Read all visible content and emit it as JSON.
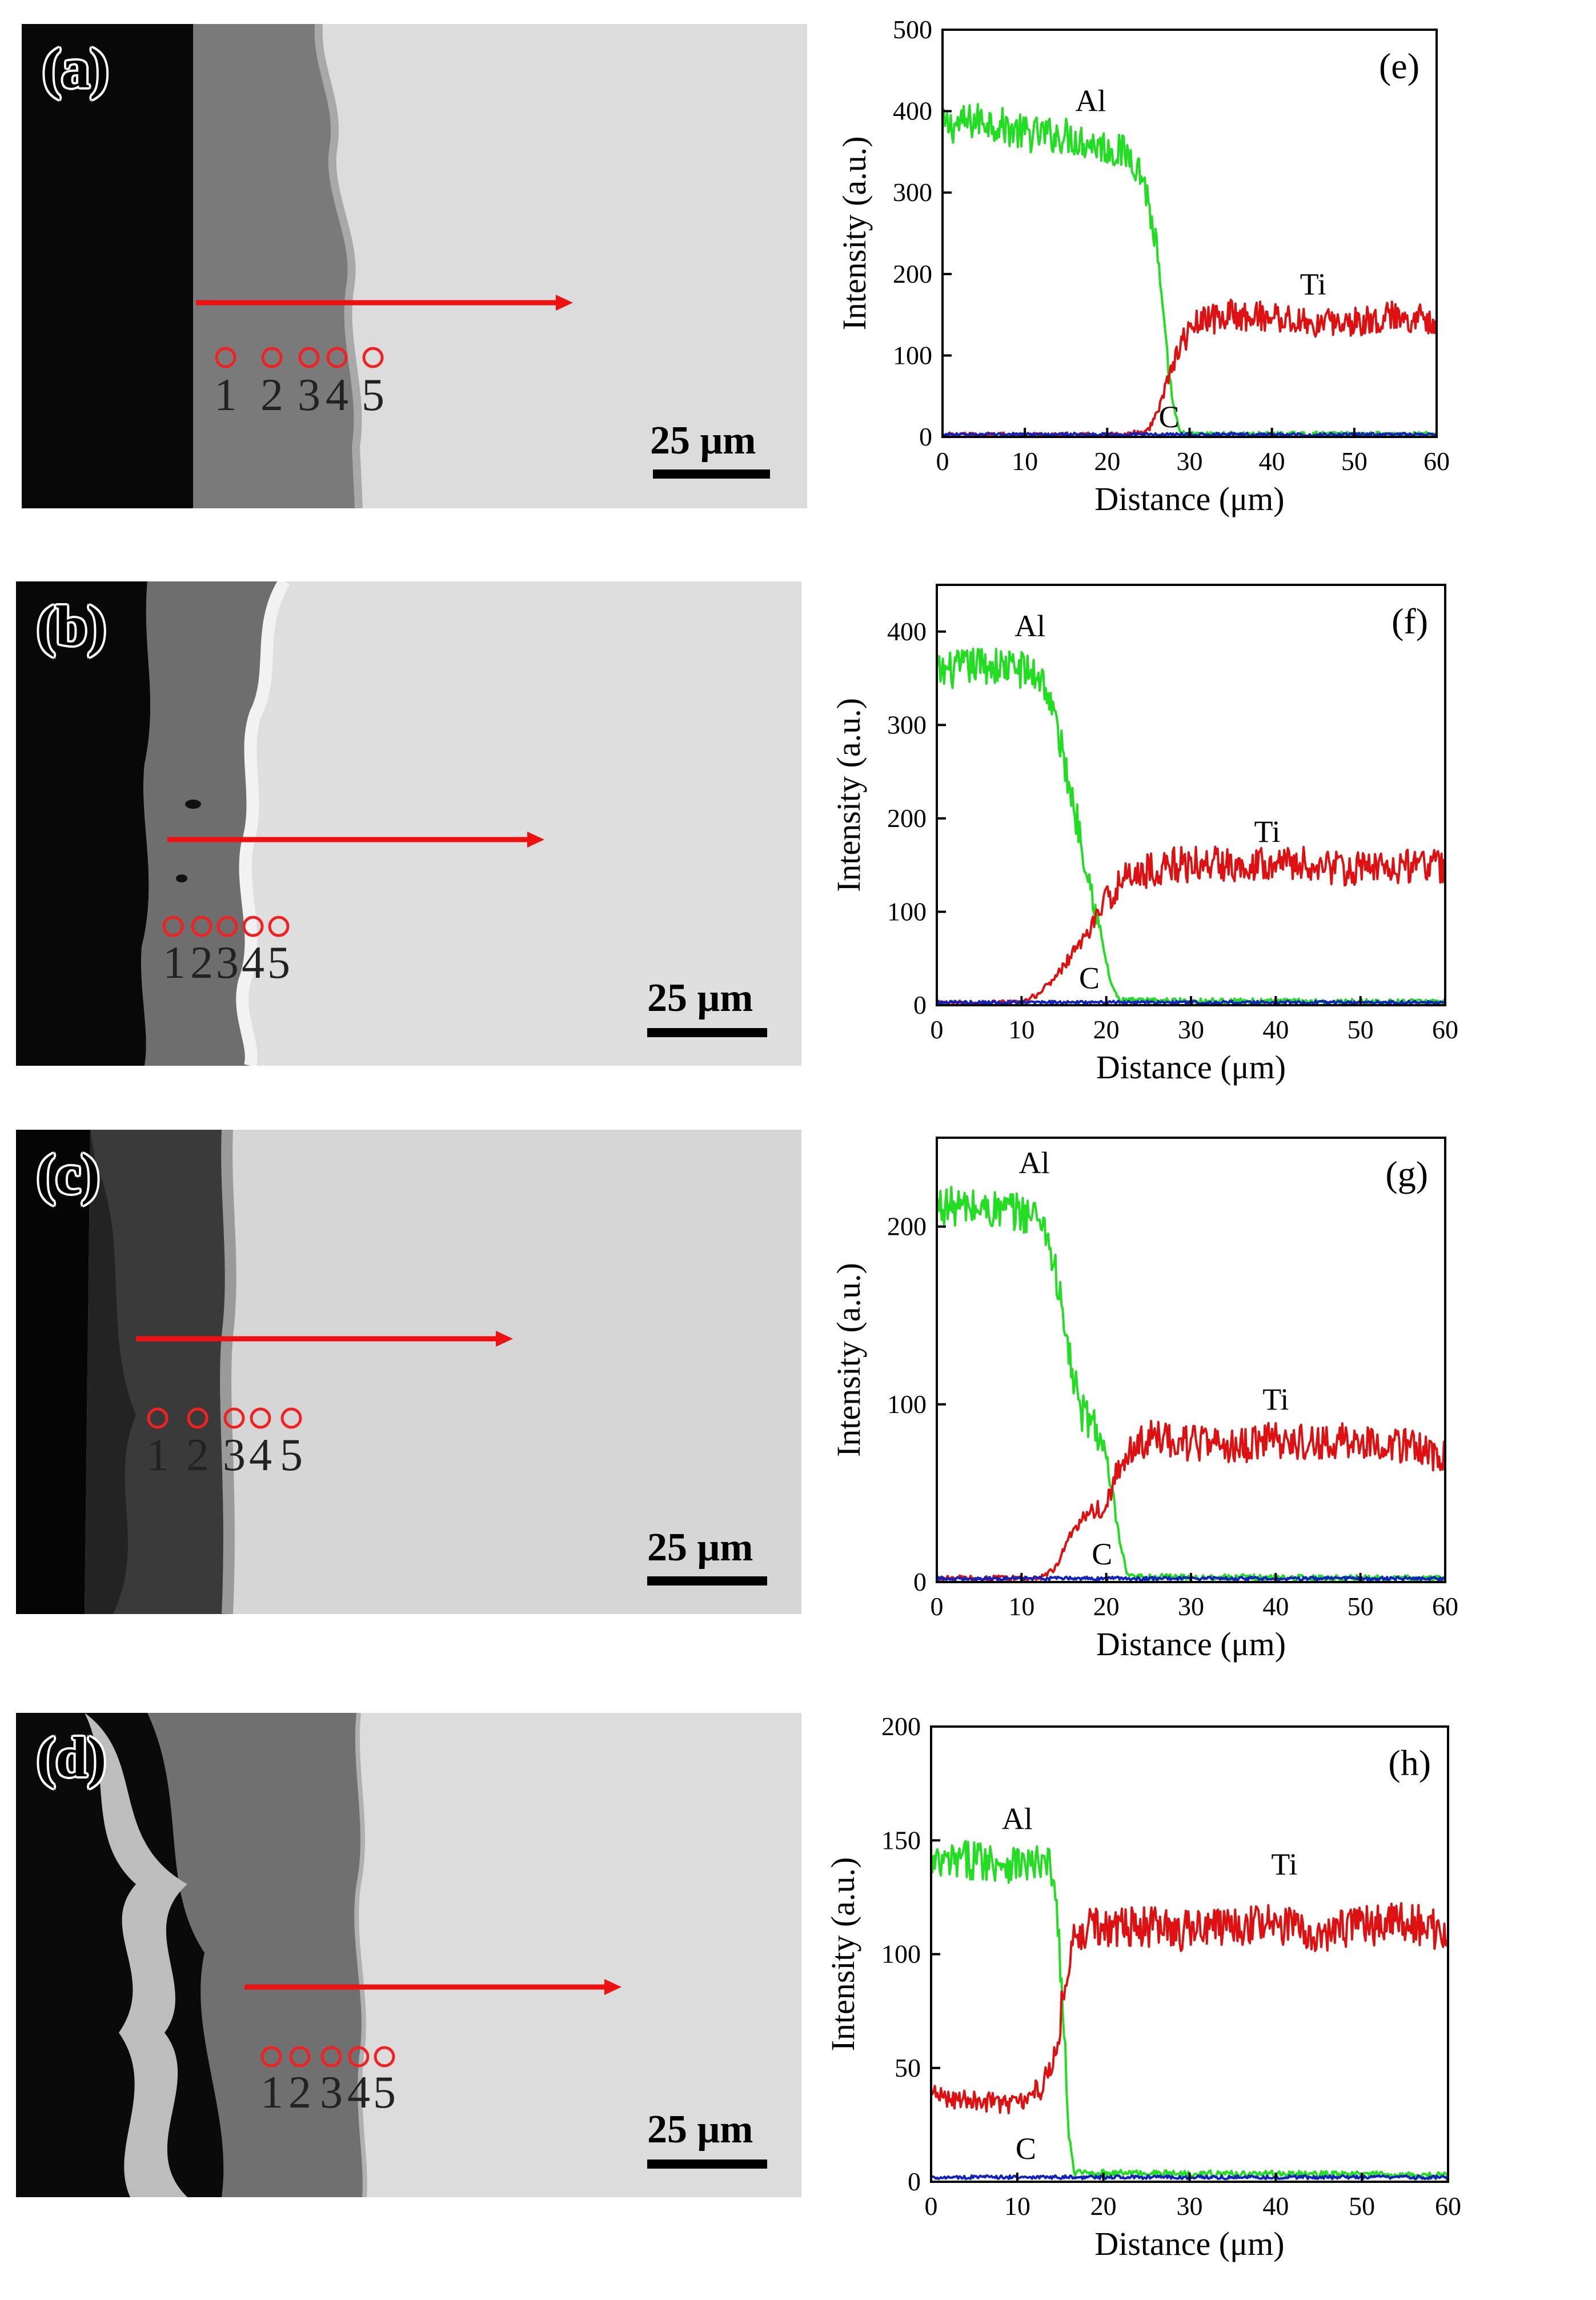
{
  "figure": {
    "sem_panels": [
      {
        "id": "a",
        "label": "(a)",
        "scale": "25 μm",
        "points": [
          "1",
          "2",
          "3",
          "4",
          "5"
        ]
      },
      {
        "id": "b",
        "label": "(b)",
        "scale": "25 μm",
        "points": [
          "1",
          "2",
          "3",
          "4",
          "5"
        ]
      },
      {
        "id": "c",
        "label": "(c)",
        "scale": "25 μm",
        "points": [
          "1",
          "2",
          "3",
          "4",
          "5"
        ]
      },
      {
        "id": "d",
        "label": "(d)",
        "scale": "25 μm",
        "points": [
          "1",
          "2",
          "3",
          "4",
          "5"
        ]
      }
    ]
  },
  "colors": {
    "al": "#22dd22",
    "ti": "#dd1111",
    "c": "#1122bb",
    "arrow": "#ee1111",
    "circle": "#ee2222"
  },
  "chart_data": [
    {
      "type": "line",
      "panel_label": "(e)",
      "xlabel": "Distance (μm)",
      "ylabel": "Intensity (a.u.)",
      "xlim": [
        0,
        60
      ],
      "ylim": [
        0,
        500
      ],
      "xticks": [
        0,
        10,
        20,
        30,
        40,
        50,
        60
      ],
      "yticks": [
        0,
        100,
        200,
        300,
        400,
        500
      ],
      "series": [
        {
          "name": "Al",
          "points": [
            [
              0,
              380
            ],
            [
              5,
              390
            ],
            [
              10,
              372
            ],
            [
              15,
              370
            ],
            [
              20,
              355
            ],
            [
              23,
              345
            ],
            [
              24.5,
              315
            ],
            [
              26,
              230
            ],
            [
              27,
              120
            ],
            [
              28,
              40
            ],
            [
              28.8,
              5
            ],
            [
              30,
              3
            ],
            [
              60,
              3
            ]
          ]
        },
        {
          "name": "Ti",
          "points": [
            [
              0,
              2
            ],
            [
              22,
              2
            ],
            [
              25,
              8
            ],
            [
              26.5,
              40
            ],
            [
              27.5,
              75
            ],
            [
              29,
              115
            ],
            [
              31,
              140
            ],
            [
              35,
              150
            ],
            [
              40,
              148
            ],
            [
              45,
              138
            ],
            [
              50,
              142
            ],
            [
              55,
              148
            ],
            [
              60,
              145
            ]
          ]
        },
        {
          "name": "C",
          "points": [
            [
              0,
              3
            ],
            [
              60,
              3
            ]
          ]
        }
      ],
      "annotations": [
        {
          "text": "Al",
          "x": 18,
          "y": 400
        },
        {
          "text": "Ti",
          "x": 45,
          "y": 175
        },
        {
          "text": "C",
          "x": 27.5,
          "y": 12
        }
      ]
    },
    {
      "type": "line",
      "panel_label": "(f)",
      "xlabel": "Distance (μm)",
      "ylabel": "Intensity (a.u.)",
      "xlim": [
        0,
        60
      ],
      "ylim": [
        0,
        450
      ],
      "xticks": [
        0,
        10,
        20,
        30,
        40,
        50,
        60
      ],
      "yticks": [
        0,
        100,
        200,
        300,
        400
      ],
      "series": [
        {
          "name": "Al",
          "points": [
            [
              0,
              355
            ],
            [
              5,
              365
            ],
            [
              10,
              360
            ],
            [
              12.5,
              350
            ],
            [
              14,
              305
            ],
            [
              16,
              220
            ],
            [
              17.5,
              160
            ],
            [
              19,
              90
            ],
            [
              20.5,
              25
            ],
            [
              21.5,
              5
            ],
            [
              60,
              3
            ]
          ]
        },
        {
          "name": "Ti",
          "points": [
            [
              0,
              2
            ],
            [
              10,
              2
            ],
            [
              12,
              12
            ],
            [
              14,
              30
            ],
            [
              16,
              55
            ],
            [
              18,
              80
            ],
            [
              19.5,
              105
            ],
            [
              21,
              125
            ],
            [
              23,
              140
            ],
            [
              28,
              150
            ],
            [
              35,
              152
            ],
            [
              40,
              155
            ],
            [
              45,
              148
            ],
            [
              50,
              145
            ],
            [
              55,
              150
            ],
            [
              60,
              148
            ]
          ]
        },
        {
          "name": "C",
          "points": [
            [
              0,
              3
            ],
            [
              60,
              3
            ]
          ]
        }
      ],
      "annotations": [
        {
          "text": "Al",
          "x": 11,
          "y": 395
        },
        {
          "text": "Ti",
          "x": 39,
          "y": 175
        },
        {
          "text": "C",
          "x": 18,
          "y": 18
        }
      ]
    },
    {
      "type": "line",
      "panel_label": "(g)",
      "xlabel": "Distance (μm)",
      "ylabel": "Intensity (a.u.)",
      "xlim": [
        0,
        60
      ],
      "ylim": [
        0,
        250
      ],
      "xticks": [
        0,
        10,
        20,
        30,
        40,
        50,
        60
      ],
      "yticks": [
        0,
        100,
        200
      ],
      "series": [
        {
          "name": "Al",
          "points": [
            [
              0,
              212
            ],
            [
              5,
              210
            ],
            [
              10,
              208
            ],
            [
              12.5,
              205
            ],
            [
              14,
              175
            ],
            [
              15.5,
              130
            ],
            [
              17,
              95
            ],
            [
              18.5,
              90
            ],
            [
              19.5,
              78
            ],
            [
              20.5,
              55
            ],
            [
              21.5,
              25
            ],
            [
              22.5,
              3
            ],
            [
              60,
              2
            ]
          ]
        },
        {
          "name": "Ti",
          "points": [
            [
              0,
              2
            ],
            [
              12,
              2
            ],
            [
              14,
              8
            ],
            [
              16,
              28
            ],
            [
              18,
              42
            ],
            [
              19.5,
              40
            ],
            [
              21,
              58
            ],
            [
              23,
              75
            ],
            [
              26,
              82
            ],
            [
              30,
              78
            ],
            [
              35,
              76
            ],
            [
              40,
              80
            ],
            [
              45,
              78
            ],
            [
              50,
              80
            ],
            [
              55,
              77
            ],
            [
              60,
              70
            ]
          ]
        },
        {
          "name": "C",
          "points": [
            [
              0,
              2
            ],
            [
              60,
              2
            ]
          ]
        }
      ],
      "annotations": [
        {
          "text": "Al",
          "x": 11.5,
          "y": 230
        },
        {
          "text": "Ti",
          "x": 40,
          "y": 97
        },
        {
          "text": "C",
          "x": 19.5,
          "y": 10
        }
      ]
    },
    {
      "type": "line",
      "panel_label": "(h)",
      "xlabel": "Distance (μm)",
      "ylabel": "Intensity (a.u.)",
      "xlim": [
        0,
        60
      ],
      "ylim": [
        0,
        200
      ],
      "xticks": [
        0,
        10,
        20,
        30,
        40,
        50,
        60
      ],
      "yticks": [
        0,
        50,
        100,
        150,
        200
      ],
      "series": [
        {
          "name": "Al",
          "points": [
            [
              0,
              138
            ],
            [
              5,
              142
            ],
            [
              10,
              140
            ],
            [
              14,
              138
            ],
            [
              14.8,
              110
            ],
            [
              15.5,
              60
            ],
            [
              16,
              20
            ],
            [
              16.6,
              4
            ],
            [
              60,
              3
            ]
          ]
        },
        {
          "name": "Ti",
          "points": [
            [
              0,
              38
            ],
            [
              5,
              36
            ],
            [
              10,
              34
            ],
            [
              13,
              42
            ],
            [
              14.5,
              60
            ],
            [
              15.5,
              85
            ],
            [
              16.5,
              105
            ],
            [
              18,
              112
            ],
            [
              25,
              112
            ],
            [
              30,
              110
            ],
            [
              35,
              112
            ],
            [
              40,
              113
            ],
            [
              45,
              110
            ],
            [
              50,
              112
            ],
            [
              55,
              114
            ],
            [
              60,
              110
            ]
          ]
        },
        {
          "name": "C",
          "points": [
            [
              0,
              2
            ],
            [
              60,
              2
            ]
          ]
        }
      ],
      "annotations": [
        {
          "text": "Al",
          "x": 10,
          "y": 155
        },
        {
          "text": "Ti",
          "x": 41,
          "y": 135
        },
        {
          "text": "C",
          "x": 11,
          "y": 10
        }
      ]
    }
  ]
}
